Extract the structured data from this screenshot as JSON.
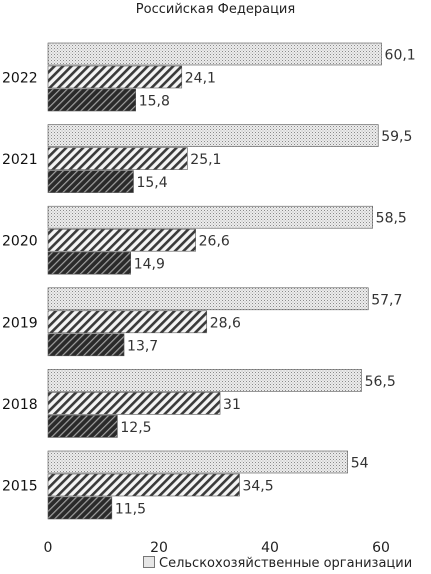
{
  "chart_data": {
    "type": "bar",
    "orientation": "horizontal",
    "title": "Российская Федерация",
    "categories": [
      "2022",
      "2021",
      "2020",
      "2019",
      "2018",
      "2015"
    ],
    "series": [
      {
        "name": "Сельскохозяйственные организации",
        "values": [
          60.1,
          59.5,
          58.5,
          57.7,
          56.5,
          54
        ],
        "labels": [
          "60,1",
          "59,5",
          "58,5",
          "57,7",
          "56,5",
          "54"
        ],
        "pattern": "dots",
        "color": "#e6e6e6"
      },
      {
        "name": "",
        "values": [
          24.1,
          25.1,
          26.6,
          28.6,
          31,
          34.5
        ],
        "labels": [
          "24,1",
          "25,1",
          "26,6",
          "28,6",
          "31",
          "34,5"
        ],
        "pattern": "hatch-light",
        "color": "#f2f2f2"
      },
      {
        "name": "",
        "values": [
          15.8,
          15.4,
          14.9,
          13.7,
          12.5,
          11.5
        ],
        "labels": [
          "15,8",
          "15,4",
          "14,9",
          "13,7",
          "12,5",
          "11,5"
        ],
        "pattern": "hatch-dark",
        "color": "#333333"
      }
    ],
    "xticks": [
      "0",
      "20",
      "40",
      "60"
    ],
    "xlim": [
      0,
      70
    ],
    "grid": false,
    "legend": {
      "position": "bottom",
      "label": "Сельскохозяйственные организации"
    }
  }
}
